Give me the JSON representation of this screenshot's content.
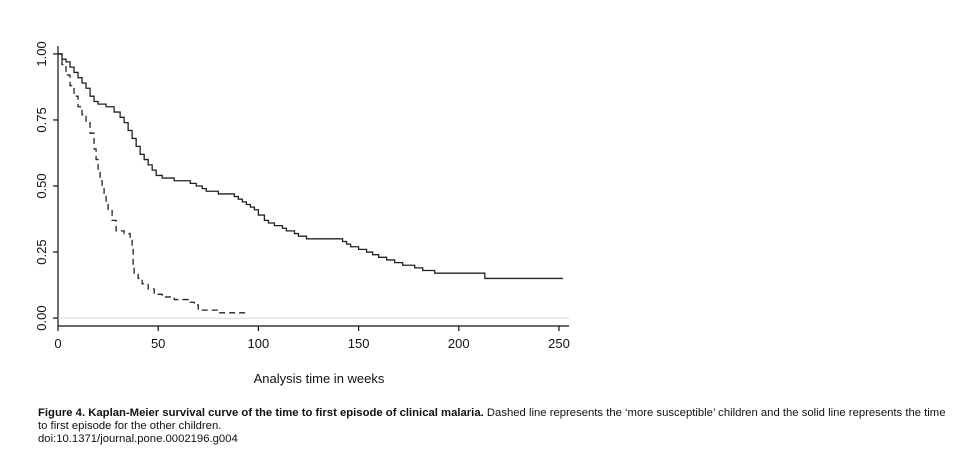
{
  "chart_data": {
    "type": "line",
    "title": "",
    "xlabel": "Analysis time in weeks",
    "ylabel": "",
    "xlim": [
      0,
      255
    ],
    "ylim": [
      -0.03,
      1.03
    ],
    "xticks": [
      0,
      50,
      100,
      150,
      200,
      250
    ],
    "yticks": [
      0.0,
      0.25,
      0.5,
      0.75,
      1.0
    ],
    "xtick_labels": [
      "0",
      "50",
      "100",
      "150",
      "200",
      "250"
    ],
    "ytick_labels": [
      "0.00",
      "0.25",
      "0.50",
      "0.75",
      "1.00"
    ],
    "grid": false,
    "legend": "none",
    "series": [
      {
        "style": "solid",
        "color": "#222222",
        "points": [
          [
            0,
            1.0
          ],
          [
            2,
            0.98
          ],
          [
            4,
            0.97
          ],
          [
            6,
            0.95
          ],
          [
            8,
            0.93
          ],
          [
            10,
            0.91
          ],
          [
            12,
            0.89
          ],
          [
            14,
            0.87
          ],
          [
            16,
            0.84
          ],
          [
            18,
            0.82
          ],
          [
            20,
            0.81
          ],
          [
            24,
            0.8
          ],
          [
            28,
            0.78
          ],
          [
            31,
            0.76
          ],
          [
            33,
            0.74
          ],
          [
            35,
            0.71
          ],
          [
            37,
            0.68
          ],
          [
            39,
            0.65
          ],
          [
            41,
            0.62
          ],
          [
            43,
            0.6
          ],
          [
            45,
            0.58
          ],
          [
            47,
            0.56
          ],
          [
            49,
            0.54
          ],
          [
            52,
            0.53
          ],
          [
            58,
            0.52
          ],
          [
            66,
            0.51
          ],
          [
            69,
            0.5
          ],
          [
            72,
            0.49
          ],
          [
            74,
            0.48
          ],
          [
            80,
            0.47
          ],
          [
            88,
            0.46
          ],
          [
            90,
            0.45
          ],
          [
            92,
            0.44
          ],
          [
            94,
            0.43
          ],
          [
            96,
            0.42
          ],
          [
            98,
            0.41
          ],
          [
            100,
            0.39
          ],
          [
            103,
            0.37
          ],
          [
            105,
            0.36
          ],
          [
            108,
            0.35
          ],
          [
            112,
            0.34
          ],
          [
            114,
            0.33
          ],
          [
            118,
            0.32
          ],
          [
            120,
            0.31
          ],
          [
            124,
            0.3
          ],
          [
            142,
            0.29
          ],
          [
            144,
            0.28
          ],
          [
            146,
            0.27
          ],
          [
            150,
            0.26
          ],
          [
            154,
            0.25
          ],
          [
            157,
            0.24
          ],
          [
            160,
            0.23
          ],
          [
            164,
            0.22
          ],
          [
            168,
            0.21
          ],
          [
            172,
            0.2
          ],
          [
            178,
            0.19
          ],
          [
            182,
            0.18
          ],
          [
            188,
            0.17
          ],
          [
            196,
            0.17
          ],
          [
            213,
            0.15
          ],
          [
            252,
            0.15
          ]
        ]
      },
      {
        "style": "dashed",
        "color": "#222222",
        "points": [
          [
            0,
            1.0
          ],
          [
            2,
            0.96
          ],
          [
            4,
            0.92
          ],
          [
            6,
            0.88
          ],
          [
            8,
            0.84
          ],
          [
            10,
            0.8
          ],
          [
            12,
            0.77
          ],
          [
            14,
            0.74
          ],
          [
            16,
            0.7
          ],
          [
            18,
            0.64
          ],
          [
            19,
            0.6
          ],
          [
            20,
            0.56
          ],
          [
            21,
            0.52
          ],
          [
            22,
            0.5
          ],
          [
            23,
            0.46
          ],
          [
            24,
            0.43
          ],
          [
            25,
            0.41
          ],
          [
            27,
            0.37
          ],
          [
            29,
            0.33
          ],
          [
            33,
            0.32
          ],
          [
            36,
            0.3
          ],
          [
            37,
            0.27
          ],
          [
            37.5,
            0.2
          ],
          [
            38,
            0.17
          ],
          [
            40,
            0.15
          ],
          [
            42,
            0.13
          ],
          [
            45,
            0.11
          ],
          [
            48,
            0.09
          ],
          [
            52,
            0.08
          ],
          [
            58,
            0.07
          ],
          [
            65,
            0.06
          ],
          [
            68,
            0.05
          ],
          [
            70,
            0.03
          ],
          [
            80,
            0.02
          ],
          [
            94,
            0.02
          ]
        ]
      }
    ]
  },
  "caption": {
    "figure_label": "Figure 4.",
    "title": "Kaplan-Meier survival curve of the time to first episode of clinical malaria.",
    "description": "Dashed line represents the ‘more susceptible’ children and the solid line represents the time to first episode for the other children.",
    "doi": "doi:10.1371/journal.pone.0002196.g004"
  }
}
